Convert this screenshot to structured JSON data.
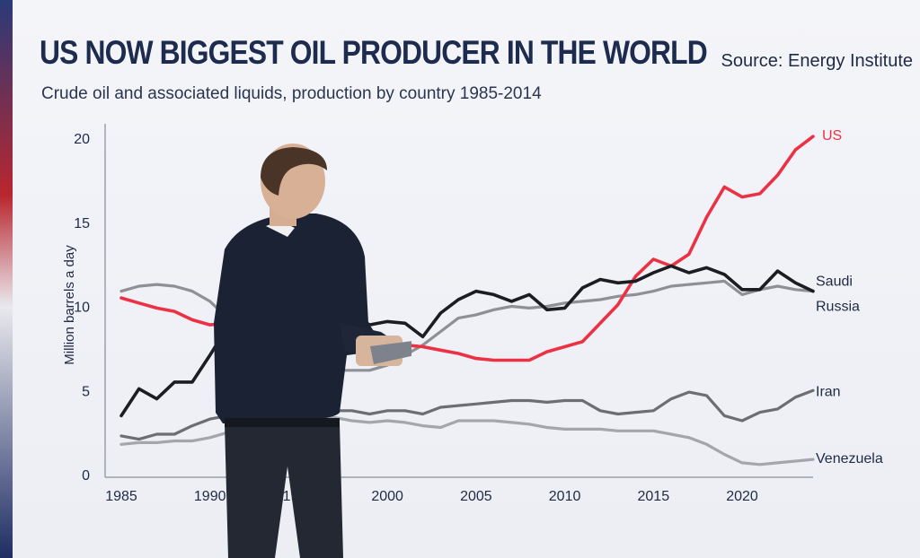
{
  "header": {
    "title": "US NOW BIGGEST OIL PRODUCER IN THE WORLD",
    "source": "Source: Energy Institute",
    "subtitle": "Crude oil and associated liquids, production by country 1985-2014"
  },
  "colors": {
    "us": "#ec3144",
    "saudi": "#1c1d21",
    "russia": "#8e9096",
    "iran": "#6c6e74",
    "venezuela": "#a4a6ab",
    "axis": "#9aa0ac",
    "text": "#1f2a44"
  },
  "chart_data": {
    "type": "line",
    "title": "US NOW BIGGEST OIL PRODUCER IN THE WORLD",
    "subtitle": "Crude oil and associated liquids, production by country 1985-2014",
    "xlabel": "",
    "ylabel": "Million barrels a day",
    "xlim": [
      1985,
      2024
    ],
    "ylim": [
      0,
      20
    ],
    "x_ticks": [
      1985,
      1990,
      1995,
      2000,
      2005,
      2010,
      2015,
      2020
    ],
    "y_ticks": [
      0,
      5,
      10,
      15,
      20
    ],
    "grid": false,
    "legend": "inline labels at line ends",
    "x": [
      1985,
      1986,
      1987,
      1988,
      1989,
      1990,
      1991,
      1992,
      1993,
      1994,
      1995,
      1996,
      1997,
      1998,
      1999,
      2000,
      2001,
      2002,
      2003,
      2004,
      2005,
      2006,
      2007,
      2008,
      2009,
      2010,
      2011,
      2012,
      2013,
      2014,
      2015,
      2016,
      2017,
      2018,
      2019,
      2020,
      2021,
      2022,
      2023,
      2024
    ],
    "series": [
      {
        "name": "US",
        "values": [
          10.5,
          10.2,
          9.9,
          9.7,
          9.2,
          8.9,
          9.0,
          8.9,
          8.6,
          8.4,
          8.3,
          8.3,
          8.3,
          8.0,
          7.7,
          7.7,
          7.7,
          7.6,
          7.4,
          7.2,
          6.9,
          6.8,
          6.8,
          6.8,
          7.3,
          7.6,
          7.9,
          9.0,
          10.1,
          11.8,
          12.8,
          12.4,
          13.1,
          15.3,
          17.1,
          16.5,
          16.7,
          17.8,
          19.3,
          20.1
        ]
      },
      {
        "name": "Saudi",
        "values": [
          3.5,
          5.1,
          4.5,
          5.5,
          5.5,
          7.1,
          8.8,
          9.1,
          9.1,
          9.1,
          9.1,
          9.3,
          9.4,
          9.5,
          8.9,
          9.1,
          9.0,
          8.2,
          9.6,
          10.4,
          10.9,
          10.7,
          10.3,
          10.7,
          9.8,
          9.9,
          11.1,
          11.6,
          11.4,
          11.5,
          12.0,
          12.4,
          12.0,
          12.3,
          11.9,
          11.0,
          11.0,
          12.1,
          11.4,
          10.9
        ]
      },
      {
        "name": "Russia",
        "values": [
          10.9,
          11.2,
          11.3,
          11.2,
          10.9,
          10.3,
          9.3,
          8.0,
          7.1,
          6.4,
          6.3,
          6.2,
          6.2,
          6.2,
          6.2,
          6.5,
          7.1,
          7.7,
          8.5,
          9.3,
          9.5,
          9.8,
          10.0,
          9.9,
          10.0,
          10.2,
          10.3,
          10.4,
          10.6,
          10.7,
          10.9,
          11.2,
          11.3,
          11.4,
          11.5,
          10.7,
          11.0,
          11.2,
          11.0,
          10.9
        ]
      },
      {
        "name": "Iran",
        "values": [
          2.3,
          2.1,
          2.4,
          2.4,
          2.9,
          3.3,
          3.5,
          3.5,
          3.7,
          3.7,
          3.7,
          3.7,
          3.8,
          3.8,
          3.6,
          3.8,
          3.8,
          3.6,
          4.0,
          4.1,
          4.2,
          4.3,
          4.4,
          4.4,
          4.3,
          4.4,
          4.4,
          3.8,
          3.6,
          3.7,
          3.8,
          4.5,
          4.9,
          4.7,
          3.5,
          3.2,
          3.7,
          3.9,
          4.6,
          5.0
        ]
      },
      {
        "name": "Venezuela",
        "values": [
          1.8,
          1.9,
          1.9,
          2.0,
          2.0,
          2.2,
          2.5,
          2.5,
          2.6,
          2.8,
          3.1,
          3.3,
          3.4,
          3.2,
          3.1,
          3.2,
          3.1,
          2.9,
          2.8,
          3.2,
          3.2,
          3.2,
          3.1,
          3.0,
          2.8,
          2.7,
          2.7,
          2.7,
          2.6,
          2.6,
          2.6,
          2.4,
          2.2,
          1.8,
          1.2,
          0.7,
          0.6,
          0.7,
          0.8,
          0.9
        ]
      }
    ]
  }
}
